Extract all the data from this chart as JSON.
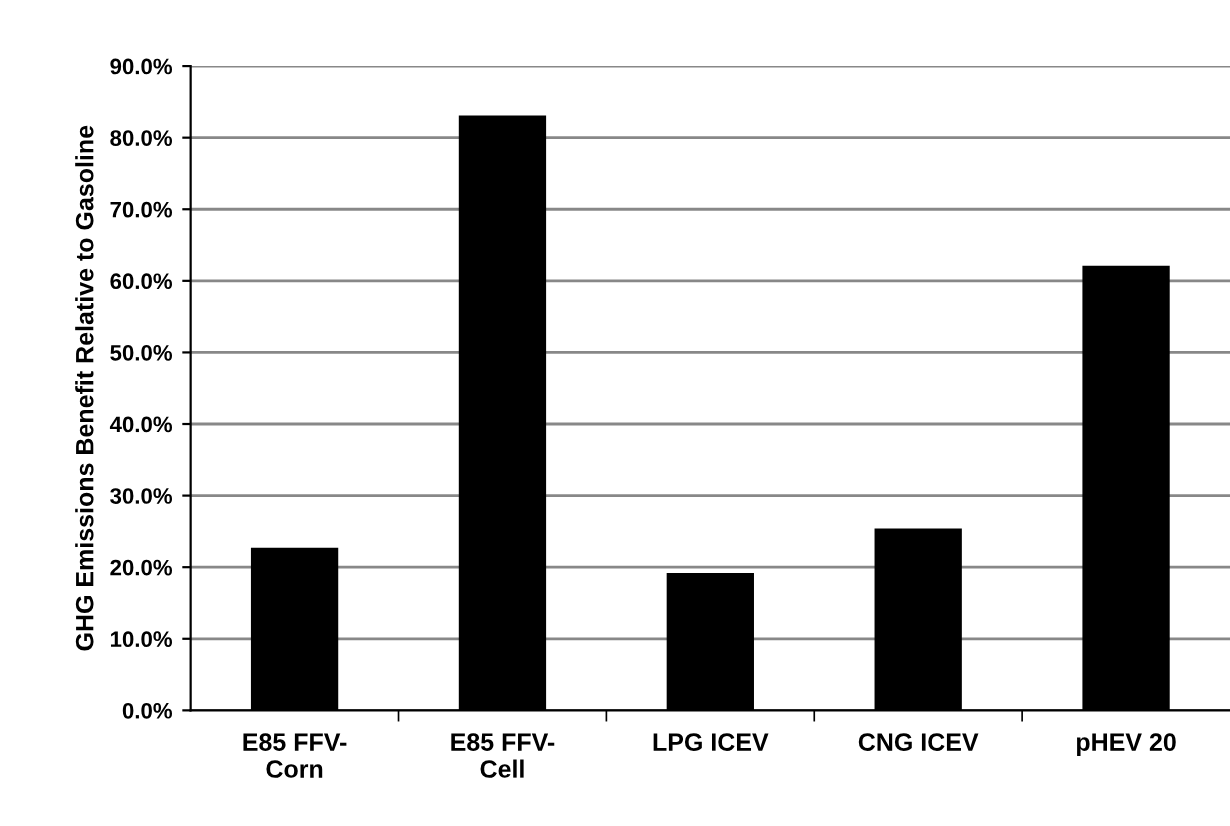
{
  "chart_data": {
    "type": "bar",
    "categories": [
      "E85 FFV-\nCorn",
      "E85 FFV-\nCell",
      "LPG ICEV",
      "CNG ICEV",
      "pHEV 20"
    ],
    "values": [
      22.7,
      83.1,
      19.2,
      25.4,
      62.1
    ],
    "color": "#000000",
    "ylabel": "GHG Emissions Benefit Relative to Gasoline",
    "ylim": [
      0,
      90
    ],
    "yticks": [
      {
        "value": 0,
        "label": "0.0%"
      },
      {
        "value": 10,
        "label": "10.0%"
      },
      {
        "value": 20,
        "label": "20.0%"
      },
      {
        "value": 30,
        "label": "30.0%"
      },
      {
        "value": 40,
        "label": "40.0%"
      },
      {
        "value": 50,
        "label": "50.0%"
      },
      {
        "value": 60,
        "label": "60.0%"
      },
      {
        "value": 70,
        "label": "70.0%"
      },
      {
        "value": 80,
        "label": "80.0%"
      },
      {
        "value": 90,
        "label": "90.0%"
      }
    ],
    "grid": "y",
    "legend": false
  }
}
